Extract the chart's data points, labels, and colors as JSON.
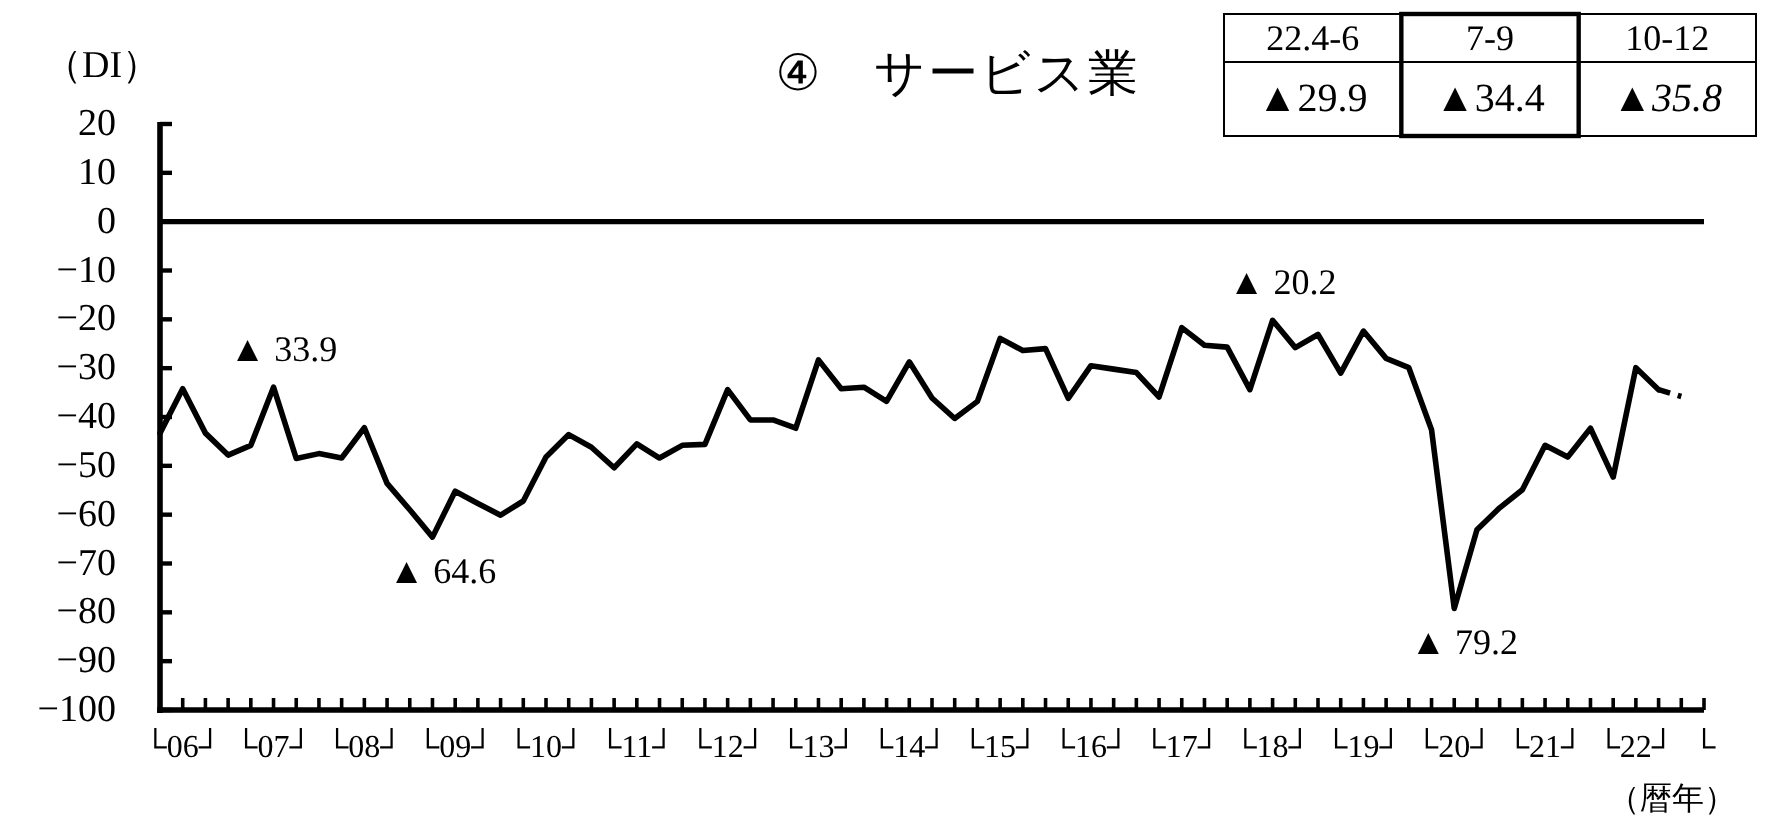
{
  "chart_data": {
    "type": "line",
    "title": "④　サービス業",
    "xlabel": "（暦年）",
    "ylabel": "（DI）",
    "categories": [
      null,
      "└06┘",
      null,
      null,
      null,
      "└07┘",
      null,
      null,
      null,
      "└08┘",
      null,
      null,
      null,
      "└09┘",
      null,
      null,
      null,
      "└10┘",
      null,
      null,
      null,
      "└11┘",
      null,
      null,
      null,
      "└12┘",
      null,
      null,
      null,
      "└13┘",
      null,
      null,
      null,
      "└14┘",
      null,
      null,
      null,
      "└15┘",
      null,
      null,
      null,
      "└16┘",
      null,
      null,
      null,
      "└17┘",
      null,
      null,
      null,
      "└18┘",
      null,
      null,
      null,
      "└19┘",
      null,
      null,
      null,
      "└20┘",
      null,
      null,
      null,
      "└21┘",
      null,
      null,
      null,
      "└22┘",
      null,
      null,
      "└"
    ],
    "ylim": [
      -100,
      20
    ],
    "yticks": [
      20,
      10,
      0,
      -10,
      -20,
      -30,
      -40,
      -50,
      -60,
      -70,
      -80,
      -90,
      -100
    ],
    "ref_lines": [
      {
        "axis": "y",
        "value": 0,
        "color": "#000000"
      }
    ],
    "series": [
      {
        "color": "#000000",
        "values": [
          -43.3,
          -34.2,
          -43.3,
          -47.8,
          -45.8,
          -33.9,
          -48.5,
          -47.5,
          -48.4,
          -42.2,
          -53.6,
          -59.0,
          -64.6,
          -55.2,
          -57.7,
          -60.1,
          -57.2,
          -48.2,
          -43.6,
          -46.2,
          -50.4,
          -45.5,
          -48.4,
          -45.8,
          -45.6,
          -34.4,
          -40.6,
          -40.6,
          -42.3,
          -28.3,
          -34.2,
          -33.9,
          -36.8,
          -28.7,
          -36.1,
          -40.3,
          -36.8,
          -23.9,
          -26.4,
          -26.0,
          -36.2,
          -29.5,
          -30.2,
          -30.9,
          -35.9,
          -21.7,
          -25.3,
          -25.7,
          -34.4,
          -20.2,
          -25.8,
          -23.1,
          -31.0,
          -22.4,
          -28.0,
          -29.9,
          -42.6,
          -79.2,
          -63.1,
          -58.6,
          -54.9,
          -45.8,
          -48.2,
          -42.3,
          -52.3,
          -29.9,
          -34.4,
          null,
          null
        ]
      },
      {
        "color": "#000000",
        "line_style": "dashed",
        "values": [
          null,
          null,
          null,
          null,
          null,
          null,
          null,
          null,
          null,
          null,
          null,
          null,
          null,
          null,
          null,
          null,
          null,
          null,
          null,
          null,
          null,
          null,
          null,
          null,
          null,
          null,
          null,
          null,
          null,
          null,
          null,
          null,
          null,
          null,
          null,
          null,
          null,
          null,
          null,
          null,
          null,
          null,
          null,
          null,
          null,
          null,
          null,
          null,
          null,
          null,
          null,
          null,
          null,
          null,
          null,
          null,
          null,
          null,
          null,
          null,
          null,
          null,
          null,
          null,
          null,
          null,
          -34.4,
          -35.8,
          null
        ]
      }
    ],
    "annotations": [
      "22.4-6",
      "7-9",
      "10-12",
      "▲29.9",
      "▲34.4",
      "▲35.8",
      {
        "text": "▲ 33.9",
        "x": "└07┘",
        "y": -33.9
      },
      {
        "text": "▲ 64.6",
        "y": -64.6
      },
      {
        "text": "▲ 20.2",
        "x": "└18┘",
        "y": -20.2
      },
      {
        "text": "▲ 79.2",
        "x": "└20┘",
        "y": -79.2
      }
    ]
  }
}
